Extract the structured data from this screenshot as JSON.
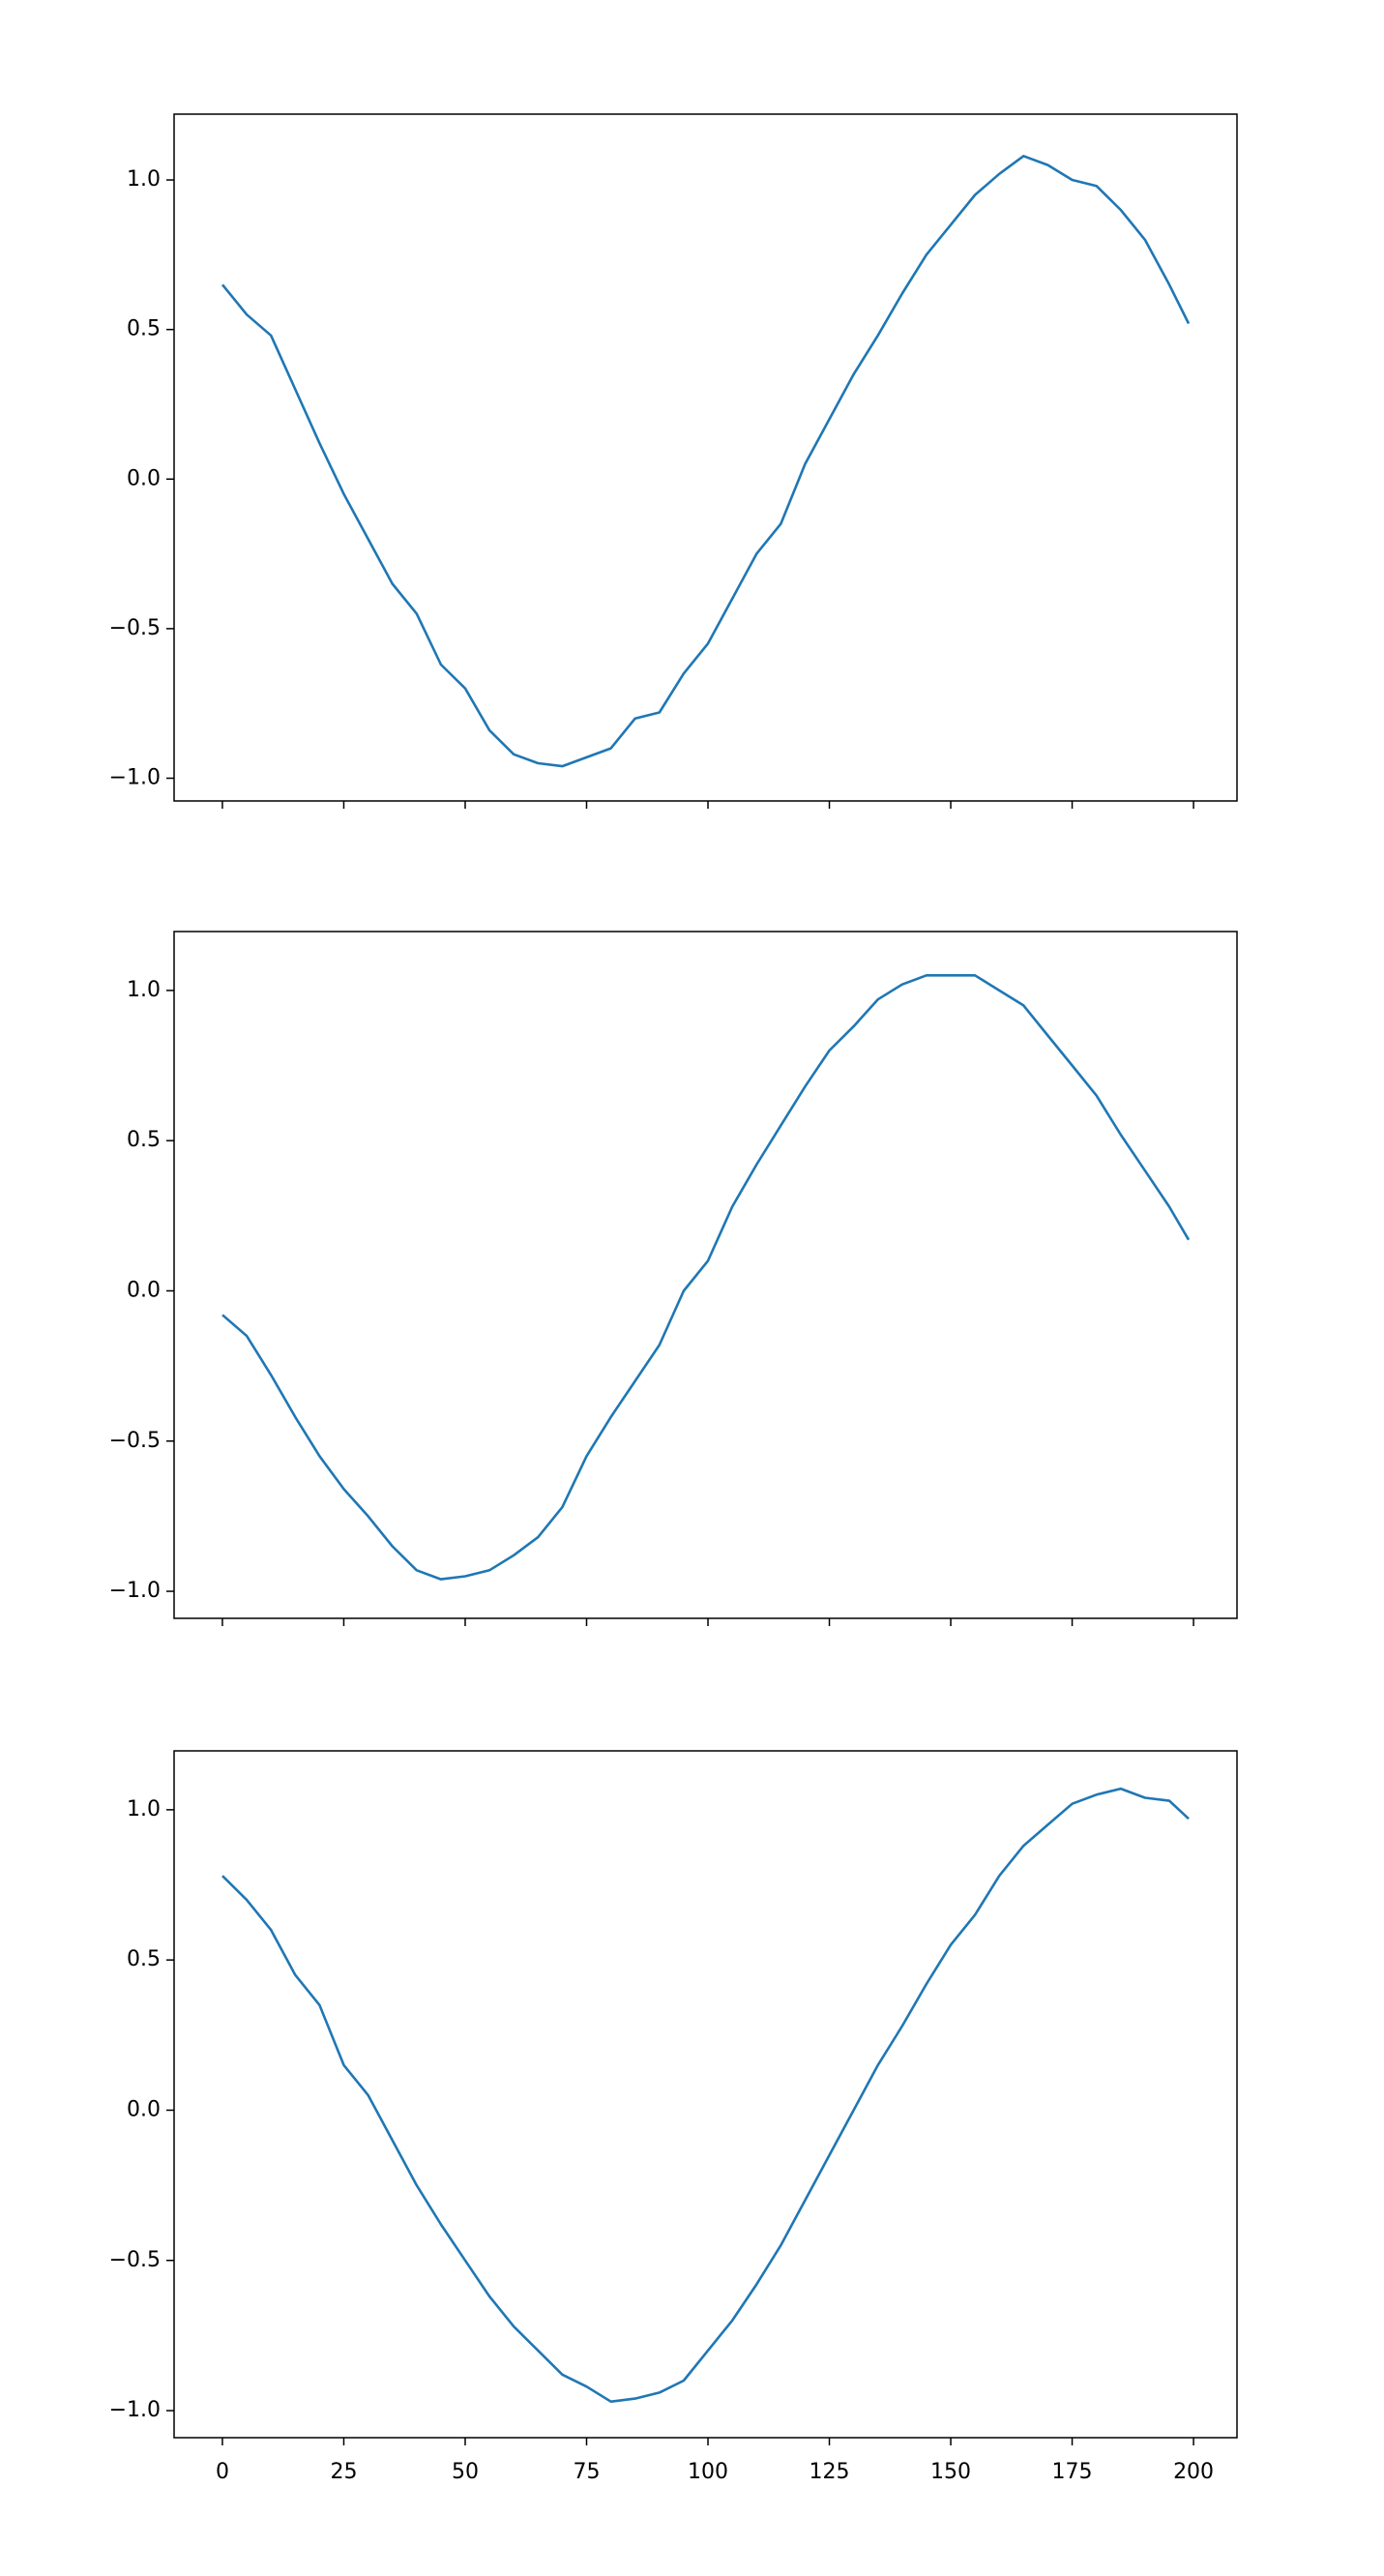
{
  "chart_data": [
    {
      "type": "line",
      "color": "#1f77b4",
      "xticklabels": false,
      "x": [
        0,
        5,
        10,
        15,
        20,
        25,
        30,
        35,
        40,
        45,
        50,
        55,
        60,
        65,
        70,
        75,
        80,
        85,
        90,
        95,
        100,
        105,
        110,
        115,
        120,
        125,
        130,
        135,
        140,
        145,
        150,
        155,
        160,
        165,
        170,
        175,
        180,
        185,
        190,
        195,
        199
      ],
      "values": [
        0.65,
        0.55,
        0.48,
        0.3,
        0.12,
        -0.05,
        -0.2,
        -0.35,
        -0.45,
        -0.62,
        -0.7,
        -0.84,
        -0.92,
        -0.95,
        -0.96,
        -0.93,
        -0.9,
        -0.8,
        -0.78,
        -0.65,
        -0.55,
        -0.4,
        -0.25,
        -0.15,
        0.05,
        0.2,
        0.35,
        0.48,
        0.62,
        0.75,
        0.85,
        0.95,
        1.02,
        1.08,
        1.05,
        1.0,
        0.98,
        0.9,
        0.8,
        0.65,
        0.52
      ],
      "xlim": [
        -9.95,
        208.95
      ],
      "ylim": [
        -1.076,
        1.22
      ],
      "xticks": [
        0,
        25,
        50,
        75,
        100,
        125,
        150,
        175,
        200
      ],
      "yticks": [
        {
          "value": -1,
          "label": "−1.0"
        },
        {
          "value": -0.5,
          "label": "−0.5"
        },
        {
          "value": 0,
          "label": "0.0"
        },
        0.5,
        {
          "value": 1,
          "label": "1.0"
        }
      ]
    },
    {
      "type": "line",
      "color": "#1f77b4",
      "xticklabels": false,
      "x": [
        0,
        5,
        10,
        15,
        20,
        25,
        30,
        35,
        40,
        45,
        50,
        55,
        60,
        65,
        70,
        75,
        80,
        85,
        90,
        95,
        100,
        105,
        110,
        115,
        120,
        125,
        130,
        135,
        140,
        145,
        150,
        155,
        160,
        165,
        170,
        175,
        180,
        185,
        190,
        195,
        199
      ],
      "values": [
        -0.08,
        -0.15,
        -0.28,
        -0.42,
        -0.55,
        -0.66,
        -0.75,
        -0.85,
        -0.93,
        -0.96,
        -0.95,
        -0.93,
        -0.88,
        -0.82,
        -0.72,
        -0.55,
        -0.42,
        -0.3,
        -0.18,
        0.0,
        0.1,
        0.28,
        0.42,
        0.55,
        0.68,
        0.8,
        0.88,
        0.97,
        1.02,
        1.05,
        1.05,
        1.05,
        1.0,
        0.95,
        0.85,
        0.75,
        0.65,
        0.52,
        0.4,
        0.28,
        0.17
      ],
      "xlim": [
        -9.95,
        208.95
      ],
      "ylim": [
        -1.09,
        1.196
      ],
      "xticks": [
        0,
        25,
        50,
        75,
        100,
        125,
        150,
        175,
        200
      ],
      "yticks": [
        {
          "value": -1,
          "label": "−1.0"
        },
        {
          "value": -0.5,
          "label": "−0.5"
        },
        {
          "value": 0,
          "label": "0.0"
        },
        0.5,
        {
          "value": 1,
          "label": "1.0"
        }
      ]
    },
    {
      "type": "line",
      "color": "#1f77b4",
      "xticklabels": true,
      "x": [
        0,
        5,
        10,
        15,
        20,
        25,
        30,
        35,
        40,
        45,
        50,
        55,
        60,
        65,
        70,
        75,
        80,
        85,
        90,
        95,
        100,
        105,
        110,
        115,
        120,
        125,
        130,
        135,
        140,
        145,
        150,
        155,
        160,
        165,
        170,
        175,
        180,
        185,
        190,
        195,
        199
      ],
      "values": [
        0.78,
        0.7,
        0.6,
        0.45,
        0.35,
        0.15,
        0.05,
        -0.1,
        -0.25,
        -0.38,
        -0.5,
        -0.62,
        -0.72,
        -0.8,
        -0.88,
        -0.92,
        -0.97,
        -0.96,
        -0.94,
        -0.9,
        -0.8,
        -0.7,
        -0.58,
        -0.45,
        -0.3,
        -0.15,
        0.0,
        0.15,
        0.28,
        0.42,
        0.55,
        0.65,
        0.78,
        0.88,
        0.95,
        1.02,
        1.05,
        1.07,
        1.04,
        1.03,
        0.97
      ],
      "xlim": [
        -9.95,
        208.95
      ],
      "ylim": [
        -1.09,
        1.196
      ],
      "xticks": [
        0,
        25,
        50,
        75,
        100,
        125,
        150,
        175,
        200
      ],
      "yticks": [
        {
          "value": -1,
          "label": "−1.0"
        },
        {
          "value": -0.5,
          "label": "−0.5"
        },
        {
          "value": 0,
          "label": "0.0"
        },
        0.5,
        {
          "value": 1,
          "label": "1.0"
        }
      ]
    }
  ]
}
